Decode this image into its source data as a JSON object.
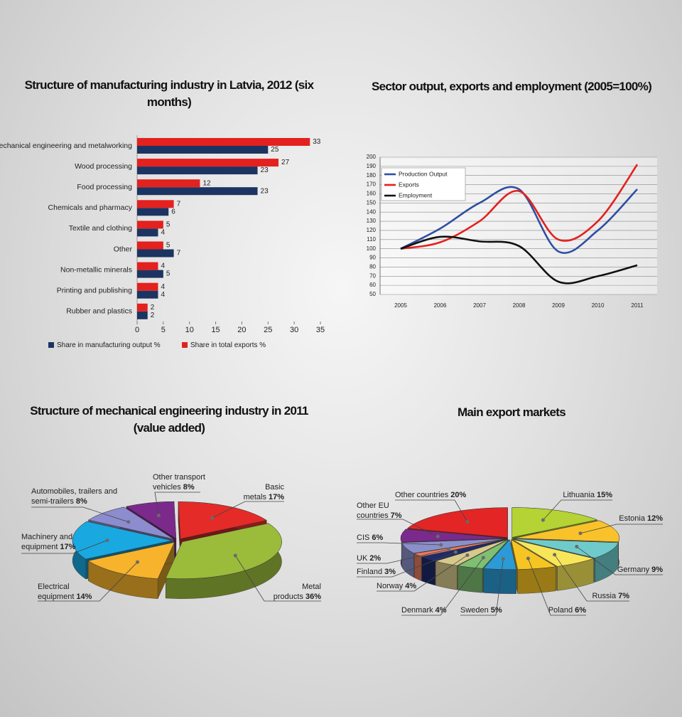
{
  "chart_data": [
    {
      "type": "bar",
      "orientation": "horizontal",
      "title": "Structure of manufacturing industry in Latvia, 2012 (six months)",
      "categories": [
        "Mechanical engineering and metalworking",
        "Wood processing",
        "Food processing",
        "Chemicals and pharmacy",
        "Textile and clothing",
        "Other",
        "Non-metallic minerals",
        "Printing and publishing",
        "Rubber and plastics"
      ],
      "series": [
        {
          "name": "Share in manufacturing output %",
          "color": "#1c3461",
          "values": [
            25,
            23,
            23,
            6,
            4,
            7,
            5,
            4,
            2
          ]
        },
        {
          "name": "Share in total exports %",
          "color": "#e3211f",
          "values": [
            33,
            27,
            12,
            7,
            5,
            5,
            4,
            4,
            2
          ]
        }
      ],
      "xlim": [
        0,
        35
      ],
      "xticks": [
        0,
        5,
        10,
        15,
        20,
        25,
        30,
        35
      ],
      "legend": "bottom"
    },
    {
      "type": "line",
      "title": "Sector output, exports and employment (2005=100%)",
      "categories": [
        "2005",
        "2006",
        "2007",
        "2008",
        "2009",
        "2010",
        "2011"
      ],
      "series": [
        {
          "name": "Production Output",
          "color": "#2e4fa3",
          "values": [
            100,
            122,
            150,
            165,
            97,
            120,
            165
          ]
        },
        {
          "name": "Exports",
          "color": "#e3211f",
          "values": [
            100,
            107,
            130,
            163,
            110,
            130,
            192
          ]
        },
        {
          "name": "Employment",
          "color": "#111111",
          "values": [
            100,
            113,
            108,
            103,
            64,
            70,
            82
          ]
        }
      ],
      "ylim": [
        50,
        200
      ],
      "yticks": [
        50,
        60,
        70,
        80,
        90,
        100,
        110,
        120,
        130,
        140,
        150,
        160,
        170,
        180,
        190,
        200
      ],
      "grid": true,
      "legend": "upper left"
    },
    {
      "type": "pie",
      "title": "Structure of mechanical engineering industry in 2011 (value added)",
      "categories": [
        "Other transport vehicles",
        "Basic metals",
        "Metal products",
        "Electrical equipment",
        "Machinery and equipment",
        "Automobiles, trailers and semi-trailers"
      ],
      "values": [
        8,
        17,
        36,
        14,
        17,
        8
      ],
      "value_labels": [
        "8%",
        "17%",
        "36%",
        "14%",
        "17%",
        "8%"
      ],
      "colors": [
        "#7b2a8c",
        "#e42b28",
        "#9bbb3b",
        "#f6b32b",
        "#1aa8e0",
        "#8c8ccf"
      ]
    },
    {
      "type": "pie",
      "title": "Main export markets",
      "categories": [
        "Lithuania",
        "Estonia",
        "Germany",
        "Russia",
        "Poland",
        "Sweden",
        "Denmark",
        "Norway",
        "Finland",
        "UK",
        "CIS",
        "Other EU countries",
        "Other countries"
      ],
      "values": [
        15,
        12,
        9,
        7,
        6,
        5,
        4,
        4,
        3,
        2,
        6,
        7,
        20
      ],
      "value_labels": [
        "15%",
        "12%",
        "9%",
        "7%",
        "6%",
        "5%",
        "4%",
        "4%",
        "3%",
        "2%",
        "6%",
        "7%",
        "20%"
      ],
      "colors": [
        "#b5d334",
        "#f9c22b",
        "#6fcbcb",
        "#f7e659",
        "#f6c524",
        "#2b9bd7",
        "#7fbf72",
        "#d6c98c",
        "#1f2a6b",
        "#e87a5e",
        "#8b8fc9",
        "#7a2a8c",
        "#e32526"
      ]
    }
  ]
}
